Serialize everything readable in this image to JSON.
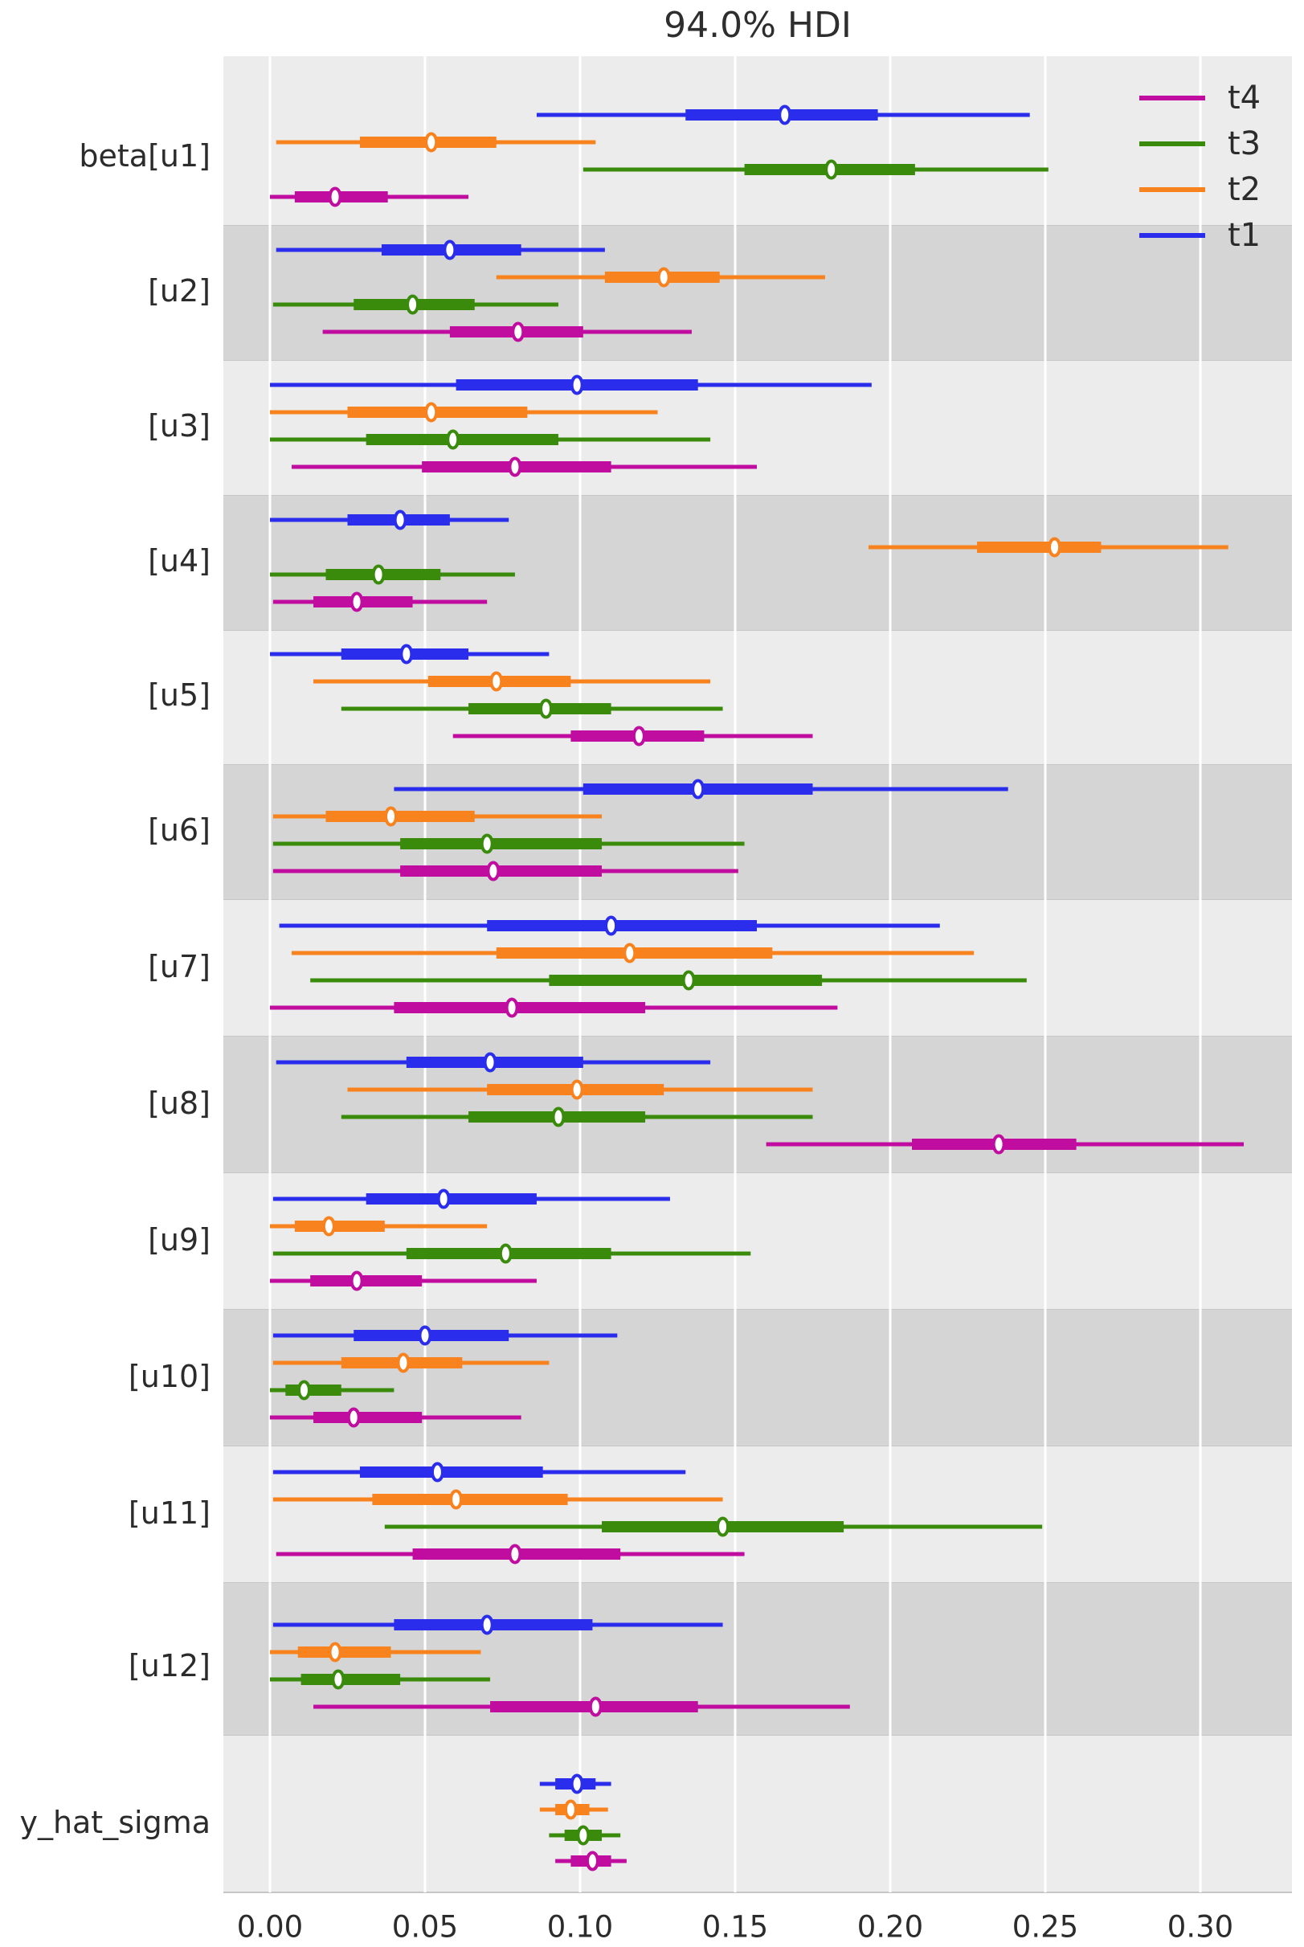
{
  "title": "94.0% HDI",
  "colors": {
    "band_light": "#ececec",
    "band_dark": "#d5d5d5",
    "band_edge": "#c6c6c6",
    "grid": "#ffffff",
    "text": "#2b2b2b",
    "marker_fill": "#ffffff"
  },
  "legend": {
    "order": [
      "t4",
      "t3",
      "t2",
      "t1"
    ]
  },
  "chart_data": {
    "type": "forest",
    "title": "94.0% HDI",
    "hdi_prob_label": "94.0%",
    "xlim": [
      -0.015,
      0.3295
    ],
    "x_ticks": [
      0.0,
      0.05,
      0.1,
      0.15,
      0.2,
      0.25,
      0.3
    ],
    "x_tick_labels": [
      "0.00",
      "0.05",
      "0.10",
      "0.15",
      "0.20",
      "0.25",
      "0.30"
    ],
    "grid": "white-vertical",
    "legend_position": "top-right",
    "series": [
      {
        "name": "t1",
        "color": "#2a2eec"
      },
      {
        "name": "t2",
        "color": "#f8821e"
      },
      {
        "name": "t3",
        "color": "#3a8b0c"
      },
      {
        "name": "t4",
        "color": "#c00da0"
      }
    ],
    "rows": [
      {
        "label": "beta[u1]",
        "intervals": [
          {
            "series": "t1",
            "hdi": [
              0.086,
              0.245
            ],
            "core": [
              0.134,
              0.196
            ],
            "median": 0.166
          },
          {
            "series": "t2",
            "hdi": [
              0.002,
              0.105
            ],
            "core": [
              0.029,
              0.073
            ],
            "median": 0.052
          },
          {
            "series": "t3",
            "hdi": [
              0.101,
              0.251
            ],
            "core": [
              0.153,
              0.208
            ],
            "median": 0.181
          },
          {
            "series": "t4",
            "hdi": [
              0.0,
              0.064
            ],
            "core": [
              0.008,
              0.038
            ],
            "median": 0.021
          }
        ]
      },
      {
        "label": "[u2]",
        "intervals": [
          {
            "series": "t1",
            "hdi": [
              0.002,
              0.108
            ],
            "core": [
              0.036,
              0.081
            ],
            "median": 0.058
          },
          {
            "series": "t2",
            "hdi": [
              0.073,
              0.179
            ],
            "core": [
              0.108,
              0.145
            ],
            "median": 0.127
          },
          {
            "series": "t3",
            "hdi": [
              0.001,
              0.093
            ],
            "core": [
              0.027,
              0.066
            ],
            "median": 0.046
          },
          {
            "series": "t4",
            "hdi": [
              0.017,
              0.136
            ],
            "core": [
              0.058,
              0.101
            ],
            "median": 0.08
          }
        ]
      },
      {
        "label": "[u3]",
        "intervals": [
          {
            "series": "t1",
            "hdi": [
              0.0,
              0.194
            ],
            "core": [
              0.06,
              0.138
            ],
            "median": 0.099
          },
          {
            "series": "t2",
            "hdi": [
              0.0,
              0.125
            ],
            "core": [
              0.025,
              0.083
            ],
            "median": 0.052
          },
          {
            "series": "t3",
            "hdi": [
              0.0,
              0.142
            ],
            "core": [
              0.031,
              0.093
            ],
            "median": 0.059
          },
          {
            "series": "t4",
            "hdi": [
              0.007,
              0.157
            ],
            "core": [
              0.049,
              0.11
            ],
            "median": 0.079
          }
        ]
      },
      {
        "label": "[u4]",
        "intervals": [
          {
            "series": "t1",
            "hdi": [
              0.0,
              0.077
            ],
            "core": [
              0.025,
              0.058
            ],
            "median": 0.042
          },
          {
            "series": "t2",
            "hdi": [
              0.193,
              0.309
            ],
            "core": [
              0.228,
              0.268
            ],
            "median": 0.253
          },
          {
            "series": "t3",
            "hdi": [
              0.0,
              0.079
            ],
            "core": [
              0.018,
              0.055
            ],
            "median": 0.035
          },
          {
            "series": "t4",
            "hdi": [
              0.001,
              0.07
            ],
            "core": [
              0.014,
              0.046
            ],
            "median": 0.028
          }
        ]
      },
      {
        "label": "[u5]",
        "intervals": [
          {
            "series": "t1",
            "hdi": [
              0.0,
              0.09
            ],
            "core": [
              0.023,
              0.064
            ],
            "median": 0.044
          },
          {
            "series": "t2",
            "hdi": [
              0.014,
              0.142
            ],
            "core": [
              0.051,
              0.097
            ],
            "median": 0.073
          },
          {
            "series": "t3",
            "hdi": [
              0.023,
              0.146
            ],
            "core": [
              0.064,
              0.11
            ],
            "median": 0.089
          },
          {
            "series": "t4",
            "hdi": [
              0.059,
              0.175
            ],
            "core": [
              0.097,
              0.14
            ],
            "median": 0.119
          }
        ]
      },
      {
        "label": "[u6]",
        "intervals": [
          {
            "series": "t1",
            "hdi": [
              0.04,
              0.238
            ],
            "core": [
              0.101,
              0.175
            ],
            "median": 0.138
          },
          {
            "series": "t2",
            "hdi": [
              0.001,
              0.107
            ],
            "core": [
              0.018,
              0.066
            ],
            "median": 0.039
          },
          {
            "series": "t3",
            "hdi": [
              0.001,
              0.153
            ],
            "core": [
              0.042,
              0.107
            ],
            "median": 0.07
          },
          {
            "series": "t4",
            "hdi": [
              0.001,
              0.151
            ],
            "core": [
              0.042,
              0.107
            ],
            "median": 0.072
          }
        ]
      },
      {
        "label": "[u7]",
        "intervals": [
          {
            "series": "t1",
            "hdi": [
              0.003,
              0.216
            ],
            "core": [
              0.07,
              0.157
            ],
            "median": 0.11
          },
          {
            "series": "t2",
            "hdi": [
              0.007,
              0.227
            ],
            "core": [
              0.073,
              0.162
            ],
            "median": 0.116
          },
          {
            "series": "t3",
            "hdi": [
              0.013,
              0.244
            ],
            "core": [
              0.09,
              0.178
            ],
            "median": 0.135
          },
          {
            "series": "t4",
            "hdi": [
              0.0,
              0.183
            ],
            "core": [
              0.04,
              0.121
            ],
            "median": 0.078
          }
        ]
      },
      {
        "label": "[u8]",
        "intervals": [
          {
            "series": "t1",
            "hdi": [
              0.002,
              0.142
            ],
            "core": [
              0.044,
              0.101
            ],
            "median": 0.071
          },
          {
            "series": "t2",
            "hdi": [
              0.025,
              0.175
            ],
            "core": [
              0.07,
              0.127
            ],
            "median": 0.099
          },
          {
            "series": "t3",
            "hdi": [
              0.023,
              0.175
            ],
            "core": [
              0.064,
              0.121
            ],
            "median": 0.093
          },
          {
            "series": "t4",
            "hdi": [
              0.16,
              0.314
            ],
            "core": [
              0.207,
              0.26
            ],
            "median": 0.235
          }
        ]
      },
      {
        "label": "[u9]",
        "intervals": [
          {
            "series": "t1",
            "hdi": [
              0.001,
              0.129
            ],
            "core": [
              0.031,
              0.086
            ],
            "median": 0.056
          },
          {
            "series": "t2",
            "hdi": [
              0.0,
              0.07
            ],
            "core": [
              0.008,
              0.037
            ],
            "median": 0.019
          },
          {
            "series": "t3",
            "hdi": [
              0.001,
              0.155
            ],
            "core": [
              0.044,
              0.11
            ],
            "median": 0.076
          },
          {
            "series": "t4",
            "hdi": [
              0.0,
              0.086
            ],
            "core": [
              0.013,
              0.049
            ],
            "median": 0.028
          }
        ]
      },
      {
        "label": "[u10]",
        "intervals": [
          {
            "series": "t1",
            "hdi": [
              0.001,
              0.112
            ],
            "core": [
              0.027,
              0.077
            ],
            "median": 0.05
          },
          {
            "series": "t2",
            "hdi": [
              0.001,
              0.09
            ],
            "core": [
              0.023,
              0.062
            ],
            "median": 0.043
          },
          {
            "series": "t3",
            "hdi": [
              0.0,
              0.04
            ],
            "core": [
              0.005,
              0.023
            ],
            "median": 0.011
          },
          {
            "series": "t4",
            "hdi": [
              0.0,
              0.081
            ],
            "core": [
              0.014,
              0.049
            ],
            "median": 0.027
          }
        ]
      },
      {
        "label": "[u11]",
        "intervals": [
          {
            "series": "t1",
            "hdi": [
              0.001,
              0.134
            ],
            "core": [
              0.029,
              0.088
            ],
            "median": 0.054
          },
          {
            "series": "t2",
            "hdi": [
              0.001,
              0.146
            ],
            "core": [
              0.033,
              0.096
            ],
            "median": 0.06
          },
          {
            "series": "t3",
            "hdi": [
              0.037,
              0.249
            ],
            "core": [
              0.107,
              0.185
            ],
            "median": 0.146
          },
          {
            "series": "t4",
            "hdi": [
              0.002,
              0.153
            ],
            "core": [
              0.046,
              0.113
            ],
            "median": 0.079
          }
        ]
      },
      {
        "label": "[u12]",
        "intervals": [
          {
            "series": "t1",
            "hdi": [
              0.001,
              0.146
            ],
            "core": [
              0.04,
              0.104
            ],
            "median": 0.07
          },
          {
            "series": "t2",
            "hdi": [
              0.0,
              0.068
            ],
            "core": [
              0.009,
              0.039
            ],
            "median": 0.021
          },
          {
            "series": "t3",
            "hdi": [
              0.0,
              0.071
            ],
            "core": [
              0.01,
              0.042
            ],
            "median": 0.022
          },
          {
            "series": "t4",
            "hdi": [
              0.014,
              0.187
            ],
            "core": [
              0.071,
              0.138
            ],
            "median": 0.105
          }
        ]
      },
      {
        "label": "y_hat_sigma",
        "intervals": [
          {
            "series": "t1",
            "hdi": [
              0.087,
              0.11
            ],
            "core": [
              0.092,
              0.105
            ],
            "median": 0.099
          },
          {
            "series": "t2",
            "hdi": [
              0.087,
              0.109
            ],
            "core": [
              0.092,
              0.103
            ],
            "median": 0.097
          },
          {
            "series": "t3",
            "hdi": [
              0.09,
              0.113
            ],
            "core": [
              0.095,
              0.107
            ],
            "median": 0.101
          },
          {
            "series": "t4",
            "hdi": [
              0.092,
              0.115
            ],
            "core": [
              0.097,
              0.11
            ],
            "median": 0.104
          }
        ]
      }
    ]
  }
}
